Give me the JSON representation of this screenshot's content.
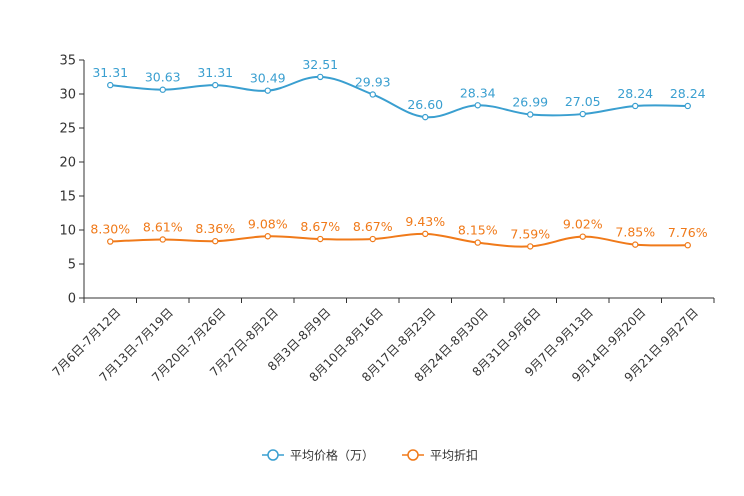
{
  "chart_data": {
    "type": "line",
    "categories": [
      "7月6日-7月12日",
      "7月13日-7月19日",
      "7月20日-7月26日",
      "7月27日-8月2日",
      "8月3日-8月9日",
      "8月10日-8月16日",
      "8月17日-8月23日",
      "8月24日-8月30日",
      "8月31日-9月6日",
      "9月7日-9月13日",
      "9月14日-9月20日",
      "9月21日-9月27日"
    ],
    "series": [
      {
        "name": "平均价格（万）",
        "values": [
          31.31,
          30.63,
          31.31,
          30.49,
          32.51,
          29.93,
          26.6,
          28.34,
          26.99,
          27.05,
          28.24,
          28.24
        ],
        "labels": [
          "31.31",
          "30.63",
          "31.31",
          "30.49",
          "32.51",
          "29.93",
          "26.60",
          "28.34",
          "26.99",
          "27.05",
          "28.24",
          "28.24"
        ],
        "color": "#3a9fd0"
      },
      {
        "name": "平均折扣",
        "values": [
          8.3,
          8.61,
          8.36,
          9.08,
          8.67,
          8.67,
          9.43,
          8.15,
          7.59,
          9.02,
          7.85,
          7.76
        ],
        "labels": [
          "8.30%",
          "8.61%",
          "8.36%",
          "9.08%",
          "8.67%",
          "8.67%",
          "9.43%",
          "8.15%",
          "7.59%",
          "9.02%",
          "7.85%",
          "7.76%"
        ],
        "color": "#f07a1a"
      }
    ],
    "yticks": [
      "0",
      "5",
      "10",
      "15",
      "20",
      "25",
      "30",
      "35"
    ],
    "ylim": [
      0,
      35
    ],
    "grid": false,
    "title": "",
    "xlabel": "",
    "ylabel": "",
    "legend_position": "bottom-center"
  }
}
